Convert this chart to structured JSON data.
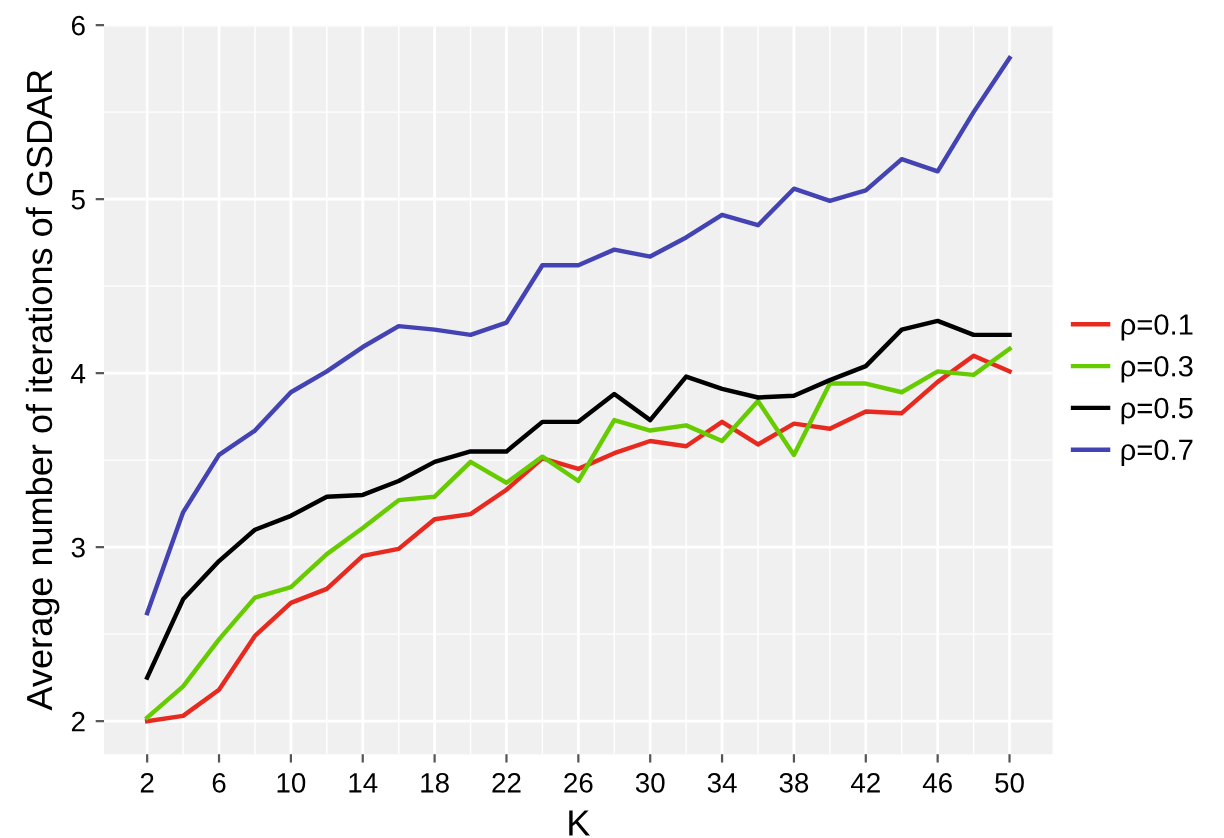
{
  "chart_data": {
    "type": "line",
    "xlabel": "K",
    "ylabel": "Average number of iterations of GSDAR",
    "x": [
      2,
      4,
      6,
      8,
      10,
      12,
      14,
      16,
      18,
      20,
      22,
      24,
      26,
      28,
      30,
      32,
      34,
      36,
      38,
      40,
      42,
      44,
      46,
      48,
      50
    ],
    "series": [
      {
        "name": "ρ=0.1",
        "color": "#e8291f",
        "values": [
          2.0,
          2.03,
          2.18,
          2.49,
          2.68,
          2.76,
          2.95,
          2.99,
          3.16,
          3.19,
          3.33,
          3.51,
          3.45,
          3.54,
          3.61,
          3.58,
          3.72,
          3.59,
          3.71,
          3.68,
          3.78,
          3.77,
          3.95,
          4.1,
          4.01
        ]
      },
      {
        "name": "ρ=0.3",
        "color": "#66cc00",
        "values": [
          2.02,
          2.2,
          2.47,
          2.71,
          2.77,
          2.96,
          3.11,
          3.27,
          3.29,
          3.49,
          3.37,
          3.52,
          3.38,
          3.73,
          3.67,
          3.7,
          3.61,
          3.84,
          3.53,
          3.94,
          3.94,
          3.89,
          4.01,
          3.99,
          4.14
        ]
      },
      {
        "name": "ρ=0.5",
        "color": "#000000",
        "values": [
          2.25,
          2.7,
          2.92,
          3.1,
          3.18,
          3.29,
          3.3,
          3.38,
          3.49,
          3.55,
          3.55,
          3.72,
          3.72,
          3.88,
          3.73,
          3.98,
          3.91,
          3.86,
          3.87,
          3.96,
          4.04,
          4.25,
          4.3,
          4.22,
          4.22
        ]
      },
      {
        "name": "ρ=0.7",
        "color": "#4343b3",
        "values": [
          2.62,
          3.2,
          3.53,
          3.67,
          3.89,
          4.01,
          4.15,
          4.27,
          4.25,
          4.22,
          4.29,
          4.62,
          4.62,
          4.71,
          4.67,
          4.78,
          4.91,
          4.85,
          5.06,
          4.99,
          5.05,
          5.23,
          5.16,
          5.5,
          5.81
        ]
      }
    ],
    "xlim": [
      -0.4,
      52.4
    ],
    "xticks": [
      2,
      6,
      10,
      14,
      18,
      22,
      26,
      30,
      34,
      38,
      42,
      46,
      50
    ],
    "ylim": [
      1.81,
      6.0
    ],
    "yticks": [
      2,
      3,
      4,
      5,
      6
    ],
    "grid": true,
    "legend": "right",
    "marker": "none",
    "line_style": "solid"
  }
}
